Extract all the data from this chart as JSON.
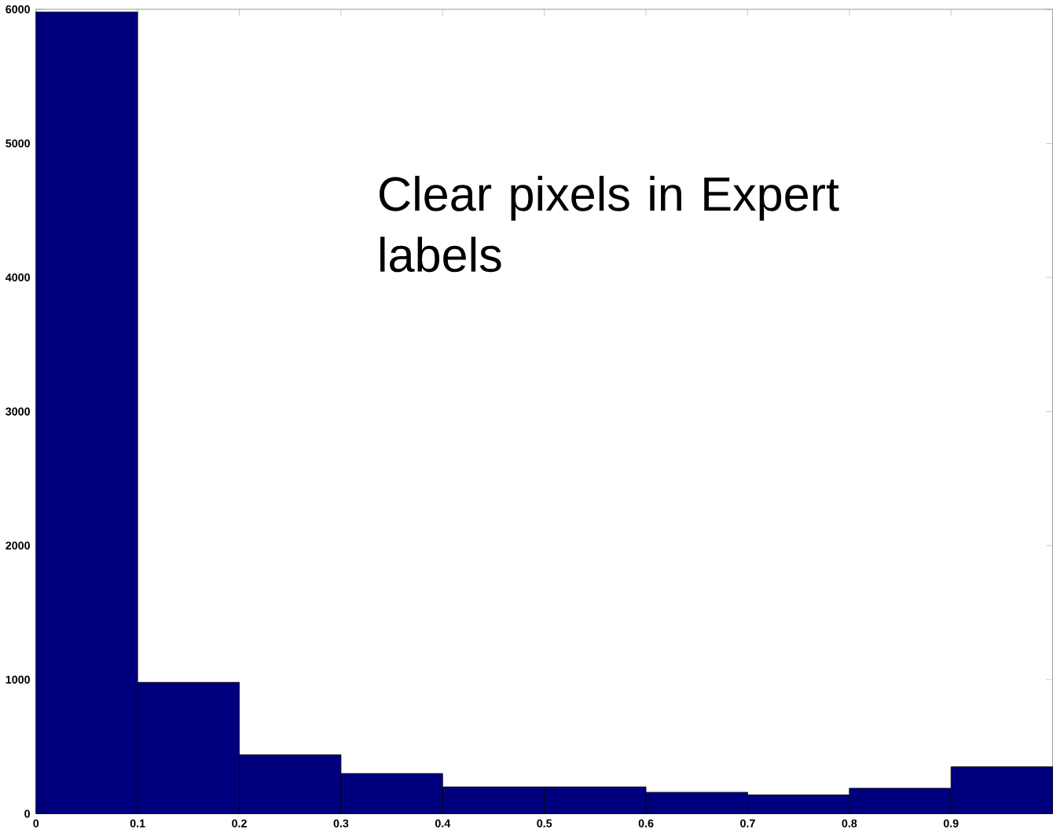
{
  "chart_data": {
    "type": "histogram",
    "bins": [
      0,
      0.1,
      0.2,
      0.3,
      0.4,
      0.5,
      0.6,
      0.7,
      0.8,
      0.9,
      1.0
    ],
    "values": [
      5980,
      980,
      440,
      300,
      200,
      200,
      160,
      140,
      190,
      350
    ],
    "color": "#00007f",
    "xlim": [
      0,
      1
    ],
    "xticks": [
      0,
      0.1,
      0.2,
      0.3,
      0.4,
      0.5,
      0.6,
      0.7,
      0.8,
      0.9
    ],
    "ylim": [
      0,
      6000
    ],
    "yticks": [
      0,
      1000,
      2000,
      3000,
      4000,
      5000,
      6000
    ],
    "annotations": [
      "Clear pixels in Expert labels"
    ]
  }
}
